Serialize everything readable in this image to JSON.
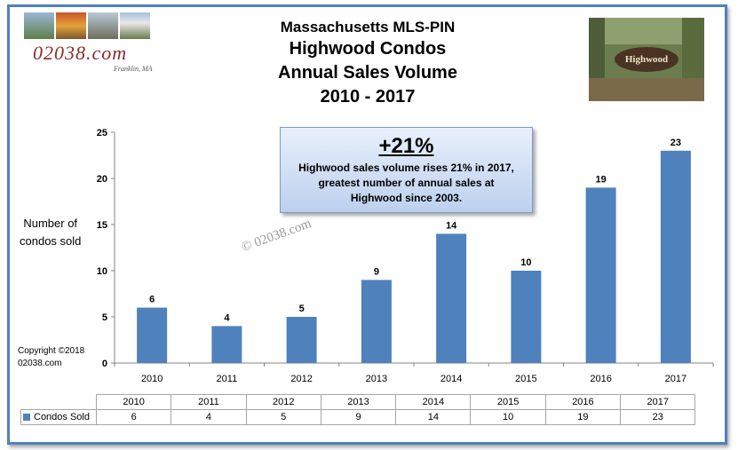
{
  "logo": {
    "text": "02038.com",
    "sub": "Franklin, MA"
  },
  "title": {
    "line1": "Massachusetts  MLS-PIN",
    "line2": "Highwood Condos",
    "line3": "Annual Sales Volume",
    "line4": "2010 - 2017"
  },
  "sign_photo": {
    "text": "Highwood"
  },
  "callout": {
    "headline": "+21%",
    "line1": "Highwood sales volume rises 21% in 2017,",
    "line2": "greatest number of annual sales at",
    "line3": "Highwood since 2003."
  },
  "ylabel": {
    "line1": "Number of",
    "line2": "condos sold"
  },
  "copyright": {
    "line1": "Copyright ©2018",
    "line2": "02038.com"
  },
  "watermark": "© 02038.com",
  "colors": {
    "bar": "#4f81bd",
    "frame": "#4f81bd"
  },
  "chart_data": {
    "type": "bar",
    "title": "Highwood Condos Annual Sales Volume 2010 - 2017",
    "ylabel": "Number of condos sold",
    "xlabel": "",
    "categories": [
      "2010",
      "2011",
      "2012",
      "2013",
      "2014",
      "2015",
      "2016",
      "2017"
    ],
    "series": [
      {
        "name": "Condos Sold",
        "values": [
          6,
          4,
          5,
          9,
          14,
          10,
          19,
          23
        ]
      }
    ],
    "ylim": [
      0,
      25
    ],
    "yticks": [
      0,
      5,
      10,
      15,
      20,
      25
    ],
    "grid": false,
    "legend": "data-table"
  },
  "table": {
    "row_label": "Condos Sold"
  }
}
